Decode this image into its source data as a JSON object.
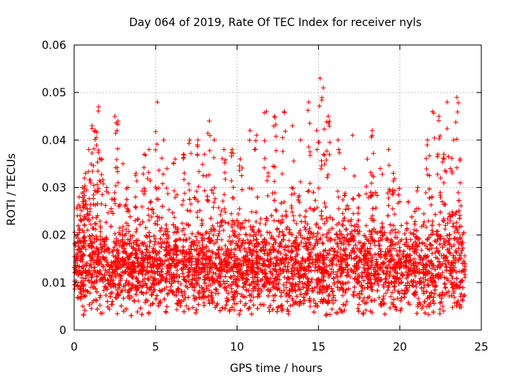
{
  "chart_data": {
    "type": "scatter",
    "title": "Day 064 of 2019, Rate Of TEC Index for receiver nyls",
    "xlabel": "GPS time / hours",
    "ylabel": "ROTI / TECUs",
    "xlim": [
      0,
      25
    ],
    "ylim": [
      0,
      0.06
    ],
    "x_ticks": [
      "0",
      "5",
      "10",
      "15",
      "20",
      "25"
    ],
    "y_ticks": [
      "0",
      "0.01",
      "0.02",
      "0.03",
      "0.04",
      "0.05",
      "0.06"
    ],
    "x_tick_values": [
      0,
      5,
      10,
      15,
      20,
      25
    ],
    "y_tick_values": [
      0,
      0.01,
      0.02,
      0.03,
      0.04,
      0.05,
      0.06
    ],
    "grid": true,
    "marker": "+",
    "series_color": "#ff0000",
    "series": [
      {
        "name": "ROTI",
        "summary": {
          "x_range": [
            0,
            24
          ],
          "bulk_range": [
            0.005,
            0.025
          ],
          "typical_median": 0.013
        },
        "points": [
          [
            0.3,
            0.028
          ],
          [
            0.5,
            0.03
          ],
          [
            0.7,
            0.033
          ],
          [
            0.9,
            0.038
          ],
          [
            1.1,
            0.043
          ],
          [
            1.3,
            0.042
          ],
          [
            1.5,
            0.047
          ],
          [
            1.7,
            0.036
          ],
          [
            2.0,
            0.03
          ],
          [
            2.5,
            0.045
          ],
          [
            2.7,
            0.044
          ],
          [
            3.0,
            0.035
          ],
          [
            3.3,
            0.03
          ],
          [
            3.8,
            0.033
          ],
          [
            4.3,
            0.037
          ],
          [
            4.6,
            0.038
          ],
          [
            5.1,
            0.048
          ],
          [
            5.5,
            0.04
          ],
          [
            5.7,
            0.034
          ],
          [
            6.2,
            0.036
          ],
          [
            6.7,
            0.037
          ],
          [
            7.1,
            0.04
          ],
          [
            7.6,
            0.04
          ],
          [
            8.0,
            0.037
          ],
          [
            8.3,
            0.044
          ],
          [
            8.6,
            0.04
          ],
          [
            9.2,
            0.038
          ],
          [
            9.7,
            0.038
          ],
          [
            10.2,
            0.036
          ],
          [
            10.8,
            0.042
          ],
          [
            11.2,
            0.041
          ],
          [
            11.8,
            0.046
          ],
          [
            12.3,
            0.045
          ],
          [
            12.9,
            0.046
          ],
          [
            13.4,
            0.043
          ],
          [
            13.9,
            0.04
          ],
          [
            14.4,
            0.048
          ],
          [
            14.9,
            0.042
          ],
          [
            15.1,
            0.053
          ],
          [
            15.3,
            0.051
          ],
          [
            15.6,
            0.045
          ],
          [
            16.2,
            0.04
          ],
          [
            16.6,
            0.034
          ],
          [
            17.1,
            0.041
          ],
          [
            18.0,
            0.036
          ],
          [
            18.3,
            0.042
          ],
          [
            18.8,
            0.034
          ],
          [
            19.3,
            0.038
          ],
          [
            19.6,
            0.033
          ],
          [
            20.0,
            0.027
          ],
          [
            21.1,
            0.03
          ],
          [
            21.7,
            0.04
          ],
          [
            22.0,
            0.046
          ],
          [
            22.4,
            0.045
          ],
          [
            22.7,
            0.037
          ],
          [
            22.9,
            0.048
          ],
          [
            23.1,
            0.034
          ],
          [
            23.3,
            0.04
          ],
          [
            23.5,
            0.049
          ],
          [
            23.7,
            0.036
          ]
        ]
      }
    ]
  }
}
